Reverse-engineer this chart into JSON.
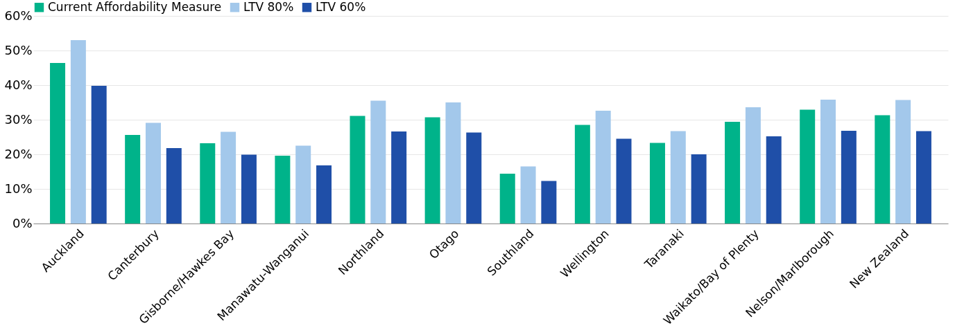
{
  "chart_data": {
    "type": "bar",
    "categories": [
      "Auckland",
      "Canterbury",
      "Gisborne/Hawkes Bay",
      "Manawatu-Wanganui",
      "Northland",
      "Otago",
      "Southland",
      "Wellington",
      "Taranaki",
      "Waikato/Bay of Plenty",
      "Nelson/Marlborough",
      "New Zealand"
    ],
    "series": [
      {
        "name": "Current Affordability Measure",
        "color": "#00b38a",
        "values": [
          46.4,
          25.6,
          23.2,
          19.6,
          31.1,
          30.7,
          14.4,
          28.5,
          23.3,
          29.4,
          32.9,
          31.3
        ]
      },
      {
        "name": "LTV 80%",
        "color": "#a3c8eb",
        "values": [
          53.0,
          29.1,
          26.5,
          22.5,
          35.5,
          35.0,
          16.5,
          32.6,
          26.7,
          33.6,
          35.8,
          35.7
        ]
      },
      {
        "name": "LTV 60%",
        "color": "#1f4fa8",
        "values": [
          39.8,
          21.8,
          19.9,
          16.8,
          26.6,
          26.3,
          12.3,
          24.5,
          20.0,
          25.2,
          26.8,
          26.7
        ]
      }
    ],
    "ylim": [
      0,
      60
    ],
    "yticks": [
      {
        "value": 0,
        "label": "0%"
      },
      {
        "value": 10,
        "label": "10%"
      },
      {
        "value": 20,
        "label": "20%"
      },
      {
        "value": 30,
        "label": "30%"
      },
      {
        "value": 40,
        "label": "40%"
      },
      {
        "value": 50,
        "label": "50%"
      },
      {
        "value": 60,
        "label": "60%"
      }
    ],
    "grid": "y",
    "legend": "top left"
  }
}
